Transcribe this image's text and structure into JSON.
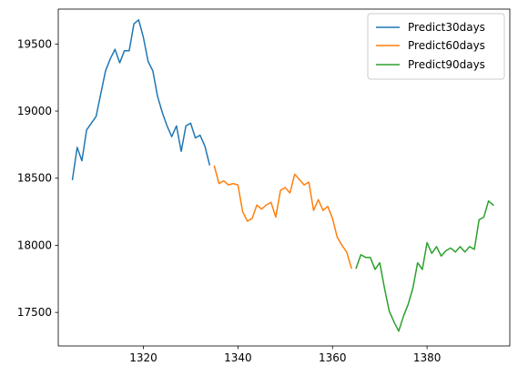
{
  "chart_data": {
    "type": "line",
    "title": "",
    "xlabel": "",
    "ylabel": "",
    "xlim": [
      1302,
      1397.5
    ],
    "ylim": [
      17250,
      19760
    ],
    "grid": false,
    "legend_position": "top-right",
    "x_ticks": [
      1320,
      1340,
      1360,
      1380
    ],
    "y_ticks": [
      17500,
      18000,
      18500,
      19000,
      19500
    ],
    "series": [
      {
        "name": "Predict30days",
        "color": "#1f77b4",
        "x": [
          1305,
          1306,
          1307,
          1308,
          1309,
          1310,
          1311,
          1312,
          1313,
          1314,
          1315,
          1316,
          1317,
          1318,
          1319,
          1320,
          1321,
          1322,
          1323,
          1324,
          1325,
          1326,
          1327,
          1328,
          1329,
          1330,
          1331,
          1332,
          1333,
          1334
        ],
        "y": [
          18490,
          18730,
          18630,
          18860,
          18910,
          18960,
          19130,
          19300,
          19390,
          19460,
          19360,
          19450,
          19450,
          19650,
          19680,
          19550,
          19370,
          19300,
          19110,
          18990,
          18890,
          18810,
          18890,
          18700,
          18890,
          18910,
          18800,
          18820,
          18740,
          18600
        ]
      },
      {
        "name": "Predict60days",
        "color": "#ff7f0e",
        "x": [
          1335,
          1336,
          1337,
          1338,
          1339,
          1340,
          1341,
          1342,
          1343,
          1344,
          1345,
          1346,
          1347,
          1348,
          1349,
          1350,
          1351,
          1352,
          1353,
          1354,
          1355,
          1356,
          1357,
          1358,
          1359,
          1360,
          1361,
          1362,
          1363,
          1364
        ],
        "y": [
          18590,
          18460,
          18480,
          18450,
          18460,
          18450,
          18250,
          18180,
          18200,
          18300,
          18270,
          18300,
          18320,
          18210,
          18410,
          18430,
          18390,
          18530,
          18490,
          18450,
          18470,
          18260,
          18340,
          18260,
          18290,
          18200,
          18060,
          18000,
          17950,
          17830
        ]
      },
      {
        "name": "Predict90days",
        "color": "#2ca02c",
        "x": [
          1365,
          1366,
          1367,
          1368,
          1369,
          1370,
          1371,
          1372,
          1373,
          1374,
          1375,
          1376,
          1377,
          1378,
          1379,
          1380,
          1381,
          1382,
          1383,
          1384,
          1385,
          1386,
          1387,
          1388,
          1389,
          1390,
          1391,
          1392,
          1393,
          1394
        ],
        "y": [
          17830,
          17930,
          17910,
          17910,
          17820,
          17870,
          17680,
          17510,
          17430,
          17360,
          17470,
          17560,
          17680,
          17870,
          17820,
          18020,
          17940,
          17990,
          17920,
          17960,
          17980,
          17950,
          17990,
          17950,
          17990,
          17970,
          18190,
          18210,
          18330,
          18300
        ]
      }
    ]
  }
}
